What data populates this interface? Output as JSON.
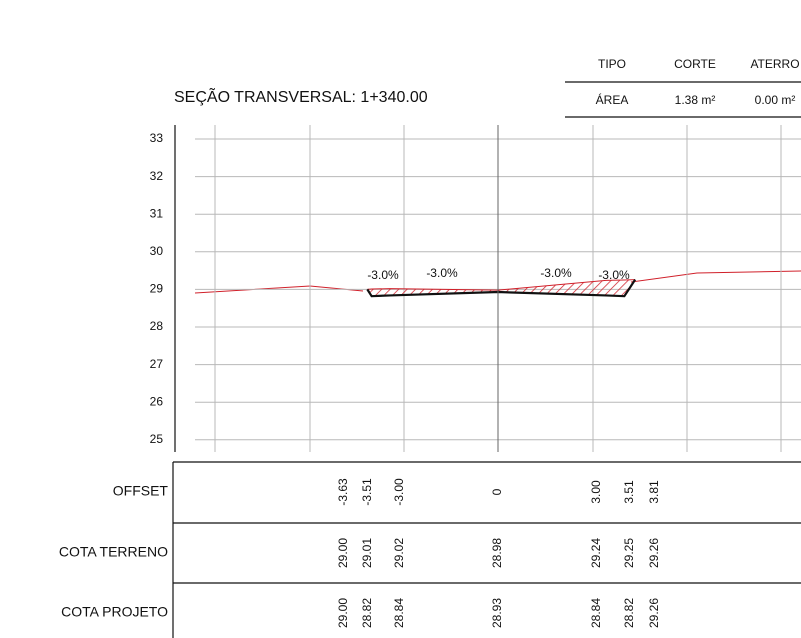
{
  "header": {
    "title": "SEÇÃO TRANSVERSAL: 1+340.00",
    "summary": {
      "columns": [
        "TIPO",
        "CORTE",
        "ATERRO"
      ],
      "row": [
        "ÁREA",
        "1.38 m²",
        "0.00 m²"
      ]
    }
  },
  "section": {
    "yticks": [
      "33",
      "32",
      "31",
      "30",
      "29",
      "28",
      "27",
      "26",
      "25"
    ],
    "slopes": [
      "-3.0%",
      "-3.0%",
      "-3.0%",
      "-3.0%"
    ]
  },
  "table": {
    "rows": [
      {
        "label": "OFFSET",
        "values": [
          "-3.63",
          "-3.51",
          "-3.00",
          "0",
          "3.00",
          "3.51",
          "3.81"
        ]
      },
      {
        "label": "COTA TERRENO",
        "values": [
          "29.00",
          "29.01",
          "29.02",
          "28.98",
          "29.24",
          "29.25",
          "29.26"
        ]
      },
      {
        "label": "COTA PROJETO",
        "values": [
          "29.00",
          "28.82",
          "28.84",
          "28.93",
          "28.84",
          "28.82",
          "29.26"
        ]
      }
    ]
  }
}
